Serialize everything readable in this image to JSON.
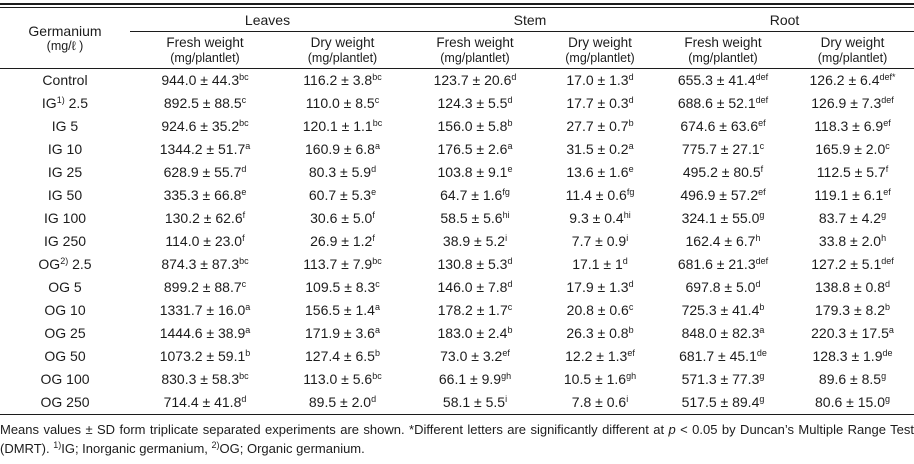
{
  "table": {
    "col1_header": {
      "line1": "Germanium",
      "line2": "(mg/ℓ )"
    },
    "groups": [
      {
        "label": "Leaves"
      },
      {
        "label": "Stem"
      },
      {
        "label": "Root"
      }
    ],
    "subheaders": [
      {
        "title": "Fresh weight",
        "unit": "(mg/plantlet)"
      },
      {
        "title": "Dry weight",
        "unit": "(mg/plantlet)"
      },
      {
        "title": "Fresh weight",
        "unit": "(mg/plantlet)"
      },
      {
        "title": "Dry weight",
        "unit": "(mg/plantlet)"
      },
      {
        "title": "Fresh weight",
        "unit": "(mg/plantlet)"
      },
      {
        "title": "Dry weight",
        "unit": "(mg/plantlet)"
      }
    ],
    "rows": [
      {
        "label": {
          "pre": "Control",
          "sup": "",
          "post": ""
        },
        "cells": [
          {
            "v": "944.0 ± 44.3",
            "s": "bc"
          },
          {
            "v": "116.2 ± 3.8",
            "s": "bc"
          },
          {
            "v": "123.7 ± 20.6",
            "s": "d"
          },
          {
            "v": "17.0 ± 1.3",
            "s": "d"
          },
          {
            "v": "655.3 ± 41.4",
            "s": "def"
          },
          {
            "v": "126.2 ± 6.4",
            "s": "def*"
          }
        ]
      },
      {
        "label": {
          "pre": "IG",
          "sup": "1)",
          "post": " 2.5"
        },
        "cells": [
          {
            "v": "892.5 ± 88.5",
            "s": "c"
          },
          {
            "v": "110.0 ± 8.5",
            "s": "c"
          },
          {
            "v": "124.3 ± 5.5",
            "s": "d"
          },
          {
            "v": "17.7 ± 0.3",
            "s": "d"
          },
          {
            "v": "688.6 ± 52.1",
            "s": "def"
          },
          {
            "v": "126.9 ± 7.3",
            "s": "def"
          }
        ]
      },
      {
        "label": {
          "pre": "IG 5",
          "sup": "",
          "post": ""
        },
        "cells": [
          {
            "v": "924.6 ± 35.2",
            "s": "bc"
          },
          {
            "v": "120.1 ± 1.1",
            "s": "bc"
          },
          {
            "v": "156.0 ± 5.8",
            "s": "b"
          },
          {
            "v": "27.7 ± 0.7",
            "s": "b"
          },
          {
            "v": "674.6 ± 63.6",
            "s": "ef"
          },
          {
            "v": "118.3 ± 6.9",
            "s": "ef"
          }
        ]
      },
      {
        "label": {
          "pre": "IG 10",
          "sup": "",
          "post": ""
        },
        "cells": [
          {
            "v": "1344.2 ± 51.7",
            "s": "a"
          },
          {
            "v": "160.9 ± 6.8",
            "s": "a"
          },
          {
            "v": "176.5 ± 2.6",
            "s": "a"
          },
          {
            "v": "31.5 ± 0.2",
            "s": "a"
          },
          {
            "v": "775.7 ± 27.1",
            "s": "c"
          },
          {
            "v": "165.9 ± 2.0",
            "s": "c"
          }
        ]
      },
      {
        "label": {
          "pre": "IG 25",
          "sup": "",
          "post": ""
        },
        "cells": [
          {
            "v": "628.9 ± 55.7",
            "s": "d"
          },
          {
            "v": "80.3 ± 5.9",
            "s": "d"
          },
          {
            "v": "103.8 ± 9.1",
            "s": "e"
          },
          {
            "v": "13.6 ± 1.6",
            "s": "e"
          },
          {
            "v": "495.2 ± 80.5",
            "s": "f"
          },
          {
            "v": "112.5 ± 5.7",
            "s": "f"
          }
        ]
      },
      {
        "label": {
          "pre": "IG 50",
          "sup": "",
          "post": ""
        },
        "cells": [
          {
            "v": "335.3 ± 66.8",
            "s": "e"
          },
          {
            "v": "60.7 ± 5.3",
            "s": "e"
          },
          {
            "v": "64.7 ± 1.6",
            "s": "fg"
          },
          {
            "v": "11.4 ± 0.6",
            "s": "fg"
          },
          {
            "v": "496.9 ± 57.2",
            "s": "ef"
          },
          {
            "v": "119.1 ± 6.1",
            "s": "ef"
          }
        ]
      },
      {
        "label": {
          "pre": "IG 100",
          "sup": "",
          "post": ""
        },
        "cells": [
          {
            "v": "130.2 ± 62.6",
            "s": "f"
          },
          {
            "v": "30.6 ± 5.0",
            "s": "f"
          },
          {
            "v": "58.5 ± 5.6",
            "s": "hi"
          },
          {
            "v": "9.3 ± 0.4",
            "s": "hi"
          },
          {
            "v": "324.1 ± 55.0",
            "s": "g"
          },
          {
            "v": "83.7 ± 4.2",
            "s": "g"
          }
        ]
      },
      {
        "label": {
          "pre": "IG 250",
          "sup": "",
          "post": ""
        },
        "cells": [
          {
            "v": "114.0 ± 23.0",
            "s": "f"
          },
          {
            "v": "26.9 ± 1.2",
            "s": "f"
          },
          {
            "v": "38.9 ± 5.2",
            "s": "i"
          },
          {
            "v": "7.7 ± 0.9",
            "s": "i"
          },
          {
            "v": "162.4 ± 6.7",
            "s": "h"
          },
          {
            "v": "33.8 ± 2.0",
            "s": "h"
          }
        ]
      },
      {
        "label": {
          "pre": "OG",
          "sup": "2)",
          "post": " 2.5"
        },
        "cells": [
          {
            "v": "874.3 ± 87.3",
            "s": "bc"
          },
          {
            "v": "113.7 ± 7.9",
            "s": "bc"
          },
          {
            "v": "130.8 ± 5.3",
            "s": "d"
          },
          {
            "v": "17.1 ± 1",
            "s": "d"
          },
          {
            "v": "681.6 ± 21.3",
            "s": "def"
          },
          {
            "v": "127.2 ± 5.1",
            "s": "def"
          }
        ]
      },
      {
        "label": {
          "pre": "OG 5",
          "sup": "",
          "post": ""
        },
        "cells": [
          {
            "v": "899.2 ± 88.7",
            "s": "c"
          },
          {
            "v": "109.5 ± 8.3",
            "s": "c"
          },
          {
            "v": "146.0 ± 7.8",
            "s": "d"
          },
          {
            "v": "17.9 ± 1.3",
            "s": "d"
          },
          {
            "v": "697.8 ± 5.0",
            "s": "d"
          },
          {
            "v": "138.8 ± 0.8",
            "s": "d"
          }
        ]
      },
      {
        "label": {
          "pre": "OG 10",
          "sup": "",
          "post": ""
        },
        "cells": [
          {
            "v": "1331.7 ± 16.0",
            "s": "a"
          },
          {
            "v": "156.5 ± 1.4",
            "s": "a"
          },
          {
            "v": "178.2 ± 1.7",
            "s": "c"
          },
          {
            "v": "20.8 ± 0.6",
            "s": "c"
          },
          {
            "v": "725.3 ± 41.4",
            "s": "b"
          },
          {
            "v": "179.3 ± 8.2",
            "s": "b"
          }
        ]
      },
      {
        "label": {
          "pre": "OG 25",
          "sup": "",
          "post": ""
        },
        "cells": [
          {
            "v": "1444.6 ± 38.9",
            "s": "a"
          },
          {
            "v": "171.9 ± 3.6",
            "s": "a"
          },
          {
            "v": "183.0 ± 2.4",
            "s": "b"
          },
          {
            "v": "26.3 ± 0.8",
            "s": "b"
          },
          {
            "v": "848.0 ± 82.3",
            "s": "a"
          },
          {
            "v": "220.3 ± 17.5",
            "s": "a"
          }
        ]
      },
      {
        "label": {
          "pre": "OG 50",
          "sup": "",
          "post": ""
        },
        "cells": [
          {
            "v": "1073.2 ± 59.1",
            "s": "b"
          },
          {
            "v": "127.4 ± 6.5",
            "s": "b"
          },
          {
            "v": "73.0 ± 3.2",
            "s": "ef"
          },
          {
            "v": "12.2 ± 1.3",
            "s": "ef"
          },
          {
            "v": "681.7 ± 45.1",
            "s": "de"
          },
          {
            "v": "128.3 ± 1.9",
            "s": "de"
          }
        ]
      },
      {
        "label": {
          "pre": "OG 100",
          "sup": "",
          "post": ""
        },
        "cells": [
          {
            "v": "830.3 ± 58.3",
            "s": "bc"
          },
          {
            "v": "113.0 ± 5.6",
            "s": "bc"
          },
          {
            "v": "66.1 ± 9.9",
            "s": "gh"
          },
          {
            "v": "10.5 ± 1.6",
            "s": "gh"
          },
          {
            "v": "571.3 ± 77.3",
            "s": "g"
          },
          {
            "v": "89.6 ± 8.5",
            "s": "g"
          }
        ]
      },
      {
        "label": {
          "pre": "OG 250",
          "sup": "",
          "post": ""
        },
        "cells": [
          {
            "v": "714.4 ± 41.8",
            "s": "d"
          },
          {
            "v": "89.5 ± 2.0",
            "s": "d"
          },
          {
            "v": "58.1 ± 5.5",
            "s": "i"
          },
          {
            "v": "7.8 ± 0.6",
            "s": "i"
          },
          {
            "v": "517.5 ± 89.4",
            "s": "g"
          },
          {
            "v": "80.6 ± 15.0",
            "s": "g"
          }
        ]
      }
    ],
    "footnote": {
      "part1": "Means values ± SD form triplicate separated experiments are shown. *Different letters are significantly different at ",
      "p_italic": "p",
      "part2": " < 0.05 by Duncan’s Multiple Range Test (DMRT). ",
      "sup1": "1)",
      "part3": "IG; Inorganic germanium, ",
      "sup2": "2)",
      "part4": "OG; Organic germanium."
    }
  }
}
